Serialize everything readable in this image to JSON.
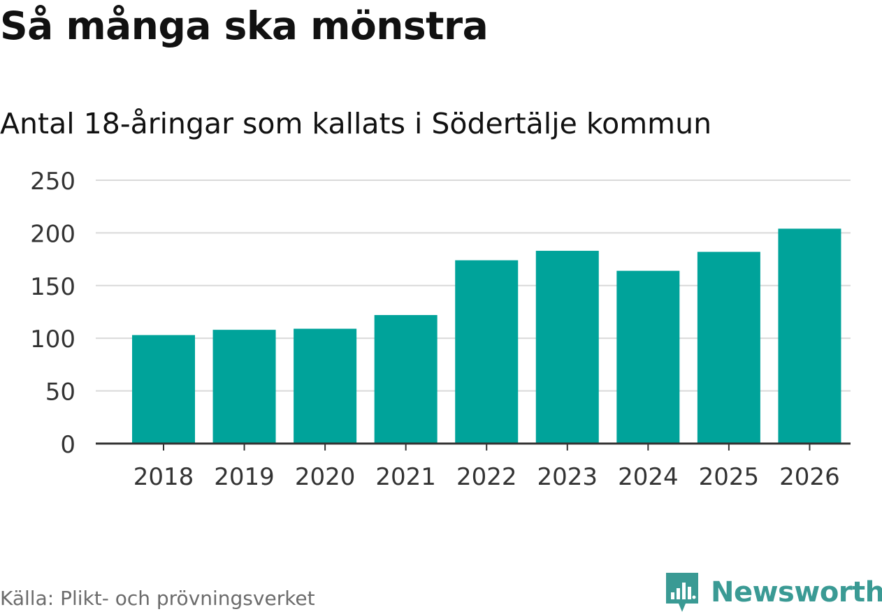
{
  "header": {
    "title": "Så många ska mönstra",
    "subtitle": "Antal 18-åringar som kallats i Södertälje kommun"
  },
  "footer": {
    "source": "Källa: Plikt- och prövningsverket",
    "brand": "Newsworthy",
    "brand_icon": "newsworthy-logo-icon"
  },
  "colors": {
    "bar": "#00a39a",
    "grid": "#d9d9d9",
    "axis": "#333333",
    "brand": "#3a9a94"
  },
  "chart_data": {
    "type": "bar",
    "title": "Så många ska mönstra",
    "subtitle": "Antal 18-åringar som kallats i Södertälje kommun",
    "categories": [
      "2018",
      "2019",
      "2020",
      "2021",
      "2022",
      "2023",
      "2024",
      "2025",
      "2026"
    ],
    "values": [
      103,
      108,
      109,
      122,
      174,
      183,
      164,
      182,
      204
    ],
    "xlabel": "",
    "ylabel": "",
    "ylim": [
      0,
      250
    ],
    "yticks": [
      0,
      50,
      100,
      150,
      200,
      250
    ],
    "grid": true
  }
}
